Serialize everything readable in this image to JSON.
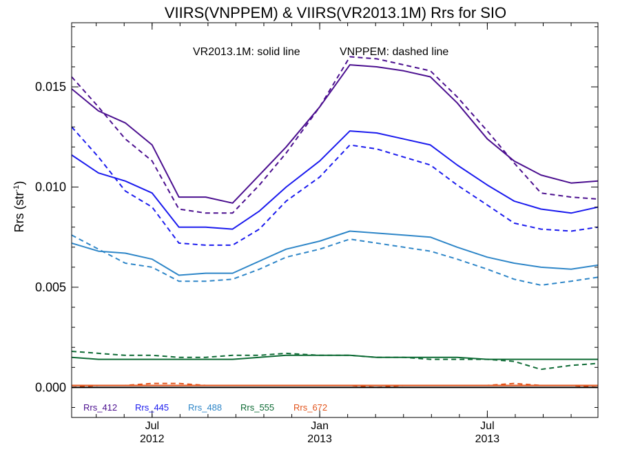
{
  "chart_data": {
    "type": "line",
    "title": "VIIRS(VNPPEM) & VIIRS(VR2013.1M)  Rrs for SIO",
    "annotation_solid": "VR2013.1M: solid line",
    "annotation_dashed": "VNPPEM: dashed line",
    "ylabel": "Rrs (str",
    "ylabel_sup": "-1",
    "ylabel_close": ")",
    "xlim": [
      2012.26,
      2013.83
    ],
    "ylim": [
      -0.0015,
      0.0182
    ],
    "yticks": [
      {
        "value": 0.0,
        "label": "0.000"
      },
      {
        "value": 0.005,
        "label": "0.005"
      },
      {
        "value": 0.01,
        "label": "0.010"
      },
      {
        "value": 0.015,
        "label": "0.015"
      }
    ],
    "xticks": [
      {
        "value": 2012.5,
        "month": "Jul",
        "year": "2012"
      },
      {
        "value": 2013.0,
        "month": "Jan",
        "year": "2013"
      },
      {
        "value": 2013.5,
        "month": "Jul",
        "year": "2013"
      }
    ],
    "x": [
      2012.26,
      2012.34,
      2012.42,
      2012.5,
      2012.58,
      2012.66,
      2012.74,
      2012.82,
      2012.9,
      2013.0,
      2013.09,
      2013.17,
      2013.25,
      2013.33,
      2013.41,
      2013.5,
      2013.58,
      2013.66,
      2013.75,
      2013.83
    ],
    "series": [
      {
        "name": "Rrs_412",
        "color": "#4b0f8f",
        "style": "solid",
        "values": [
          0.0149,
          0.0138,
          0.0132,
          0.0121,
          0.0095,
          0.0095,
          0.0092,
          0.0106,
          0.012,
          0.014,
          0.0161,
          0.016,
          0.0158,
          0.0155,
          0.0142,
          0.0124,
          0.0113,
          0.0106,
          0.0102,
          0.0103
        ]
      },
      {
        "name": "",
        "color": "#4b0f8f",
        "style": "dashed",
        "values": [
          0.0155,
          0.014,
          0.0124,
          0.0113,
          0.0089,
          0.0087,
          0.0087,
          0.0101,
          0.0117,
          0.014,
          0.0165,
          0.0164,
          0.0161,
          0.0158,
          0.0145,
          0.0128,
          0.0112,
          0.0097,
          0.0095,
          0.0094
        ]
      },
      {
        "name": "Rrs_445",
        "color": "#1a1aee",
        "style": "solid",
        "values": [
          0.0116,
          0.0107,
          0.0103,
          0.0097,
          0.008,
          0.008,
          0.0079,
          0.0088,
          0.01,
          0.0113,
          0.0128,
          0.0127,
          0.0124,
          0.0121,
          0.0111,
          0.0101,
          0.0093,
          0.0089,
          0.0087,
          0.009
        ]
      },
      {
        "name": "",
        "color": "#1a1aee",
        "style": "dashed",
        "values": [
          0.013,
          0.0115,
          0.0098,
          0.009,
          0.0072,
          0.0071,
          0.0071,
          0.0079,
          0.0093,
          0.0105,
          0.0121,
          0.0119,
          0.0115,
          0.0111,
          0.0101,
          0.0091,
          0.0082,
          0.0079,
          0.0078,
          0.008
        ]
      },
      {
        "name": "Rrs_488",
        "color": "#2e86c8",
        "style": "solid",
        "values": [
          0.0072,
          0.0068,
          0.0067,
          0.0064,
          0.0056,
          0.0057,
          0.0057,
          0.0063,
          0.0069,
          0.0073,
          0.0078,
          0.0077,
          0.0076,
          0.0075,
          0.007,
          0.0065,
          0.0062,
          0.006,
          0.0059,
          0.0061
        ]
      },
      {
        "name": "",
        "color": "#2e86c8",
        "style": "dashed",
        "values": [
          0.0076,
          0.0069,
          0.0062,
          0.006,
          0.0053,
          0.0053,
          0.0054,
          0.0059,
          0.0065,
          0.0069,
          0.0074,
          0.0072,
          0.007,
          0.0068,
          0.0064,
          0.0059,
          0.0054,
          0.0051,
          0.0053,
          0.0055
        ]
      },
      {
        "name": "Rrs_555",
        "color": "#0e6b35",
        "style": "solid",
        "values": [
          0.0015,
          0.0014,
          0.0014,
          0.0014,
          0.0014,
          0.0014,
          0.0014,
          0.0015,
          0.0016,
          0.0016,
          0.0016,
          0.0015,
          0.0015,
          0.0015,
          0.0015,
          0.0014,
          0.0014,
          0.0014,
          0.0014,
          0.0014
        ]
      },
      {
        "name": "",
        "color": "#0e6b35",
        "style": "dashed",
        "values": [
          0.0018,
          0.0017,
          0.0016,
          0.0016,
          0.0015,
          0.0015,
          0.0016,
          0.0016,
          0.0017,
          0.0016,
          0.0016,
          0.0015,
          0.0015,
          0.0014,
          0.0014,
          0.0014,
          0.0013,
          0.0009,
          0.0011,
          0.0012
        ]
      },
      {
        "name": "Rrs_672",
        "color": "#e2531b",
        "style": "solid",
        "values": [
          0.0001,
          0.0001,
          0.0001,
          0.0001,
          0.0001,
          0.0001,
          0.0001,
          0.0001,
          0.0001,
          0.0001,
          0.0001,
          0.0001,
          0.0001,
          0.0001,
          0.0001,
          0.0001,
          0.0001,
          0.0001,
          0.0001,
          0.0001
        ]
      },
      {
        "name": "",
        "color": "#e2531b",
        "style": "dashed",
        "values": [
          0.0,
          0.0001,
          0.0001,
          0.0002,
          0.0002,
          0.0001,
          0.0001,
          0.0001,
          0.0001,
          0.0001,
          0.0001,
          0.0,
          0.0001,
          0.0001,
          0.0001,
          0.0001,
          0.0002,
          0.0001,
          0.0001,
          0.0
        ]
      }
    ],
    "zero_line_color": "#000000",
    "grid": false,
    "legend_placement": "bottom-left"
  }
}
